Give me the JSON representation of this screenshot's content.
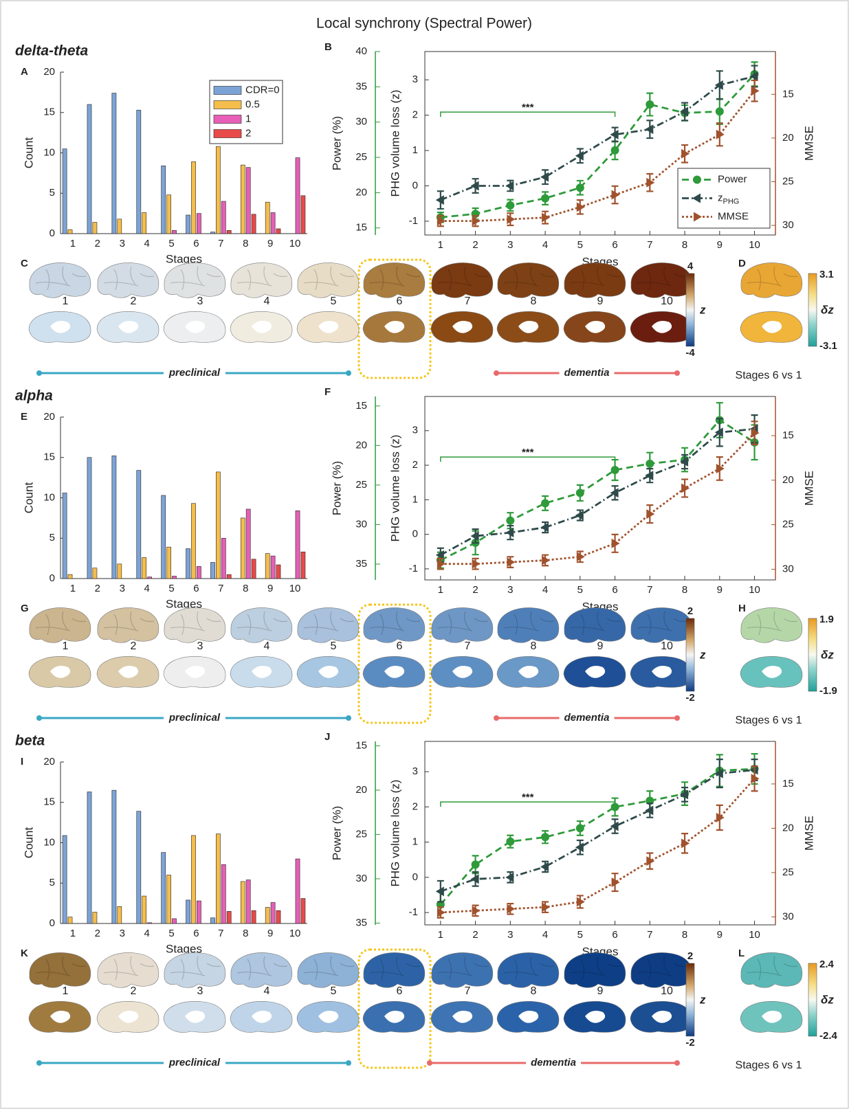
{
  "title": "Local synchrony (Spectral Power)",
  "chart_data": [
    {
      "type": "bar",
      "panel": "A",
      "xlabel": "Stages",
      "ylabel": "Count",
      "categories": [
        1,
        2,
        3,
        4,
        5,
        6,
        7,
        8,
        9,
        10
      ],
      "ylim": [
        0,
        20
      ],
      "yticks": [
        0,
        5,
        10,
        15,
        20
      ],
      "legend": "upper right",
      "series": [
        {
          "name": "CDR=0",
          "color": "#7ca3d6",
          "values": [
            10.5,
            16,
            17.4,
            15.3,
            8.4,
            2.3,
            0.2,
            0,
            0,
            0
          ]
        },
        {
          "name": "0.5",
          "color": "#f5bd4c",
          "values": [
            0.5,
            1.4,
            1.8,
            2.6,
            4.8,
            8.9,
            10.8,
            8.5,
            3.9,
            0
          ]
        },
        {
          "name": "1",
          "color": "#e75fb6",
          "values": [
            0,
            0,
            0,
            0,
            0.4,
            2.5,
            4.0,
            8.2,
            2.6,
            9.4
          ]
        },
        {
          "name": "2",
          "color": "#e94a4a",
          "values": [
            0,
            0,
            0,
            0,
            0,
            0,
            0.4,
            2.4,
            0.6,
            4.7
          ]
        }
      ]
    },
    {
      "type": "line",
      "panel": "B",
      "xlabel": "Stages",
      "ylabel": "PHG volume loss (z)",
      "y2label": "MMSE",
      "y3label": "Power (%)",
      "x": [
        1,
        2,
        3,
        4,
        5,
        6,
        7,
        8,
        9,
        10
      ],
      "xlim": [
        0.55,
        10.6
      ],
      "xticks": [
        1,
        2,
        3,
        4,
        5,
        6,
        7,
        8,
        9,
        10
      ],
      "ylim": [
        -1.39,
        3.8
      ],
      "yticks": [
        -1,
        0,
        1,
        2,
        3
      ],
      "y2lim": [
        31.1,
        10.1
      ],
      "y2ticks": [
        15,
        20,
        25,
        30
      ],
      "y3lim": [
        14,
        40
      ],
      "y3ticks": [
        15,
        20,
        25,
        30,
        35,
        40
      ],
      "legend": "lower right",
      "significance": {
        "label": "***",
        "from": 1,
        "to": 6
      },
      "series": [
        {
          "name": "Power",
          "color": "#2e9a3a",
          "axis": "y3",
          "marker": "o",
          "dash": "dashed",
          "values": [
            16.5,
            17.0,
            18.2,
            19.2,
            20.7,
            26.0,
            32.5,
            31.3,
            31.5,
            36.8
          ],
          "errors": [
            0.7,
            0.8,
            0.8,
            0.9,
            1.0,
            1.3,
            1.6,
            1.1,
            1.8,
            1.7
          ]
        },
        {
          "name": "z",
          "subscript": "PHG",
          "color": "#2f4a4a",
          "marker": "<",
          "dash": "dashdot",
          "values": [
            -0.4,
            0,
            0,
            0.25,
            0.85,
            1.45,
            1.6,
            2.1,
            2.85,
            3.1
          ],
          "errors": [
            0.25,
            0.2,
            0.15,
            0.2,
            0.2,
            0.2,
            0.25,
            0.25,
            0.4,
            0.3
          ]
        },
        {
          "name": "MMSE",
          "color": "#a0522d",
          "axis": "y2",
          "marker": ">",
          "dash": "dotted",
          "values": [
            29.5,
            29.5,
            29.3,
            29.1,
            27.9,
            26.5,
            25.1,
            21.8,
            19.6,
            14.6
          ],
          "errors": [
            0.6,
            0.6,
            0.7,
            0.7,
            0.8,
            1.0,
            1.0,
            1.0,
            1.3,
            1.2
          ]
        }
      ]
    },
    {
      "type": "bar",
      "panel": "E",
      "xlabel": "Stages",
      "ylabel": "Count",
      "categories": [
        1,
        2,
        3,
        4,
        5,
        6,
        7,
        8,
        9,
        10
      ],
      "ylim": [
        0,
        20
      ],
      "yticks": [
        0,
        5,
        10,
        15,
        20
      ],
      "series": [
        {
          "color": "#7ca3d6",
          "values": [
            10.6,
            15,
            15.2,
            13.4,
            10.3,
            3.7,
            2.0,
            0,
            0,
            0
          ]
        },
        {
          "color": "#f5bd4c",
          "values": [
            0.5,
            1.3,
            1.8,
            2.6,
            3.9,
            9.3,
            13.2,
            7.5,
            3.1,
            0
          ]
        },
        {
          "color": "#e75fb6",
          "values": [
            0,
            0,
            0,
            0.2,
            0.3,
            1.5,
            5.0,
            8.6,
            2.8,
            8.4
          ]
        },
        {
          "color": "#e94a4a",
          "values": [
            0,
            0,
            0,
            0,
            0,
            0,
            0.5,
            2.4,
            1.7,
            3.3
          ]
        }
      ]
    },
    {
      "type": "line",
      "panel": "F",
      "xlabel": "Stages",
      "ylabel": "PHG volume loss (z)",
      "y2label": "MMSE",
      "y3label": "Power (%)",
      "x": [
        1,
        2,
        3,
        4,
        5,
        6,
        7,
        8,
        9,
        10
      ],
      "xlim": [
        0.55,
        10.6
      ],
      "xticks": [
        1,
        2,
        3,
        4,
        5,
        6,
        7,
        8,
        9,
        10
      ],
      "ylim": [
        -1.32,
        3.99
      ],
      "yticks": [
        -1,
        0,
        1,
        2,
        3
      ],
      "y2lim": [
        31.2,
        10.6
      ],
      "y2ticks": [
        15,
        20,
        25,
        30
      ],
      "y3lim": [
        37,
        13.8
      ],
      "y3ticks": [
        15,
        20,
        25,
        30,
        35
      ],
      "significance": {
        "label": "***",
        "from": 1,
        "to": 6
      },
      "series": [
        {
          "color": "#2e9a3a",
          "axis": "y3",
          "marker": "o",
          "dash": "dashed",
          "values": [
            34.5,
            32.3,
            29.5,
            27.3,
            26.0,
            23.1,
            22.3,
            21.8,
            16.8,
            19.6
          ],
          "errors": [
            1.0,
            1.5,
            1.0,
            0.9,
            1.0,
            1.3,
            1.4,
            1.5,
            2.2,
            2.2
          ]
        },
        {
          "color": "#2f4a4a",
          "marker": "<",
          "dash": "dashdot",
          "values": [
            -0.6,
            -0.05,
            0.05,
            0.2,
            0.55,
            1.2,
            1.7,
            2.1,
            2.95,
            3.05
          ],
          "errors": [
            0.2,
            0.2,
            0.2,
            0.15,
            0.15,
            0.2,
            0.2,
            0.2,
            0.4,
            0.4
          ]
        },
        {
          "color": "#a0522d",
          "axis": "y2",
          "marker": ">",
          "dash": "dotted",
          "values": [
            29.4,
            29.4,
            29.2,
            29.0,
            28.6,
            27.1,
            23.8,
            20.9,
            18.7,
            14.7
          ],
          "errors": [
            0.6,
            0.6,
            0.6,
            0.6,
            0.6,
            1.0,
            1.0,
            1.0,
            1.3,
            1.3
          ]
        }
      ]
    },
    {
      "type": "bar",
      "panel": "I",
      "xlabel": "Stages",
      "ylabel": "Count",
      "categories": [
        1,
        2,
        3,
        4,
        5,
        6,
        7,
        8,
        9,
        10
      ],
      "ylim": [
        0,
        20
      ],
      "yticks": [
        0,
        5,
        10,
        15,
        20
      ],
      "series": [
        {
          "color": "#7ca3d6",
          "values": [
            10.9,
            16.3,
            16.5,
            13.9,
            8.8,
            2.9,
            0.7,
            0,
            0,
            0
          ]
        },
        {
          "color": "#f5bd4c",
          "values": [
            0.8,
            1.4,
            2.1,
            3.4,
            6.0,
            10.9,
            11.1,
            5.2,
            2.0,
            0
          ]
        },
        {
          "color": "#e75fb6",
          "values": [
            0,
            0,
            0,
            0.1,
            0.6,
            2.8,
            7.3,
            5.4,
            2.6,
            8.0
          ]
        },
        {
          "color": "#e94a4a",
          "values": [
            0,
            0,
            0,
            0,
            0,
            0,
            1.5,
            1.6,
            1.6,
            3.1
          ]
        }
      ]
    },
    {
      "type": "line",
      "panel": "J",
      "xlabel": "Stages",
      "ylabel": "PHG volume loss (z)",
      "y2label": "MMSE",
      "y3label": "Power (%)",
      "x": [
        1,
        2,
        3,
        4,
        5,
        6,
        7,
        8,
        9,
        10
      ],
      "xlim": [
        0.55,
        10.6
      ],
      "xticks": [
        1,
        2,
        3,
        4,
        5,
        6,
        7,
        8,
        9,
        10
      ],
      "ylim": [
        -1.35,
        3.86
      ],
      "yticks": [
        -1,
        0,
        1,
        2,
        3
      ],
      "y2lim": [
        30.9,
        10.2
      ],
      "y2ticks": [
        15,
        20,
        25,
        30
      ],
      "y3lim": [
        35.2,
        14.5
      ],
      "y3ticks": [
        15,
        20,
        25,
        30,
        35
      ],
      "significance": {
        "label": "***",
        "from": 1,
        "to": 6
      },
      "series": [
        {
          "color": "#2e9a3a",
          "axis": "y3",
          "marker": "o",
          "dash": "dashed",
          "values": [
            32.9,
            28.4,
            25.8,
            25.3,
            24.3,
            21.9,
            21.2,
            20.4,
            17.8,
            17.6
          ],
          "errors": [
            1.5,
            1.0,
            0.7,
            0.7,
            0.8,
            1.0,
            1.1,
            1.3,
            1.8,
            1.7
          ]
        },
        {
          "color": "#2f4a4a",
          "marker": "<",
          "dash": "dashdot",
          "values": [
            -0.4,
            -0.05,
            0,
            0.3,
            0.85,
            1.45,
            1.9,
            2.35,
            2.95,
            3.05
          ],
          "errors": [
            0.3,
            0.2,
            0.15,
            0.15,
            0.2,
            0.2,
            0.2,
            0.2,
            0.4,
            0.3
          ]
        },
        {
          "color": "#a0522d",
          "axis": "y2",
          "marker": ">",
          "dash": "dotted",
          "values": [
            29.5,
            29.3,
            29.1,
            28.9,
            28.3,
            26.1,
            23.7,
            21.7,
            18.8,
            14.4
          ],
          "errors": [
            0.6,
            0.6,
            0.6,
            0.6,
            0.7,
            1.0,
            0.9,
            1.1,
            1.4,
            1.4
          ]
        }
      ]
    }
  ],
  "bands": [
    {
      "title": "delta-theta",
      "panel": "C",
      "stages": [
        1,
        2,
        3,
        4,
        5,
        6,
        7,
        8,
        9,
        10
      ],
      "colorbar_ticks": [
        4,
        -4
      ],
      "colorbar_symbol": "z",
      "lateral_colors": [
        "#c9d6e3",
        "#d3dce5",
        "#dfe2e3",
        "#e7e3d9",
        "#e7dcc6",
        "#a97c3f",
        "#7a3a12",
        "#7d4115",
        "#7b3b12",
        "#6e2810"
      ],
      "medial_colors": [
        "#cfe0ee",
        "#d9e6f0",
        "#eceef0",
        "#f0ece0",
        "#efe2cc",
        "#a7783b",
        "#8b4a14",
        "#8b4c18",
        "#86451a",
        "#6b1e10"
      ],
      "preclinical": "preclinical",
      "dementia": "dementia",
      "contrast": {
        "panel": "D",
        "ticks": [
          3.1,
          -3.1
        ],
        "symbol": "δz",
        "caption": "Stages 6 vs 1",
        "lateral_color": "#e8a634",
        "medial_color": "#f0b53a"
      }
    },
    {
      "title": "alpha",
      "panel": "G",
      "stages": [
        1,
        2,
        3,
        4,
        5,
        6,
        7,
        8,
        9,
        10
      ],
      "colorbar_ticks": [
        2,
        -2
      ],
      "colorbar_symbol": "z",
      "lateral_colors": [
        "#cbb58e",
        "#d3c19f",
        "#e1dcd3",
        "#bccfe0",
        "#a9c1dc",
        "#6f98c6",
        "#6e97c5",
        "#4f7fb8",
        "#3668a8",
        "#3e70ad"
      ],
      "medial_colors": [
        "#d9c9a7",
        "#dcccac",
        "#eeeeee",
        "#c8dcec",
        "#a6c6e2",
        "#5b8cc1",
        "#5e8fc3",
        "#6a99c8",
        "#1f4f97",
        "#295b9e"
      ],
      "preclinical": "preclinical",
      "dementia": "dementia",
      "contrast": {
        "panel": "H",
        "ticks": [
          1.9,
          -1.9
        ],
        "symbol": "δz",
        "caption": "Stages 6 vs 1",
        "lateral_color": "#b5d7a8",
        "medial_color": "#67c2bd"
      }
    },
    {
      "title": "beta",
      "panel": "K",
      "stages": [
        1,
        2,
        3,
        4,
        5,
        6,
        7,
        8,
        9,
        10
      ],
      "colorbar_ticks": [
        2,
        -2
      ],
      "colorbar_symbol": "z",
      "lateral_colors": [
        "#94703a",
        "#e6ddd0",
        "#c6d5e3",
        "#aec6df",
        "#8eb1d6",
        "#2d63a6",
        "#3d72b1",
        "#2b62a7",
        "#0e3f86",
        "#0f3d84"
      ],
      "medial_colors": [
        "#a07b40",
        "#ece3d2",
        "#d0deeb",
        "#bfd4e8",
        "#9fc0e1",
        "#3a70b0",
        "#3e74b3",
        "#2a63a9",
        "#164b92",
        "#1c4e92"
      ],
      "preclinical": "preclinical",
      "dementia": "dementia",
      "contrast": {
        "panel": "L",
        "ticks": [
          2.4,
          -2.4
        ],
        "symbol": "δz",
        "caption": "Stages 6 vs 1",
        "lateral_color": "#5bb8b6",
        "medial_color": "#6fc3bd"
      }
    }
  ]
}
